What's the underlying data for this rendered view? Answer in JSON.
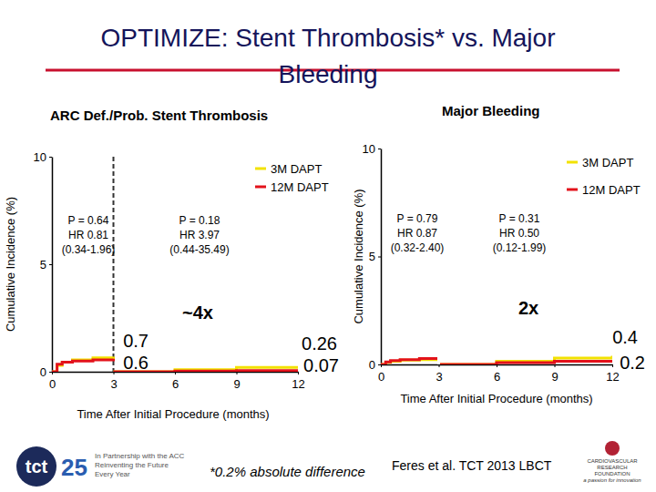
{
  "title": "OPTIMIZE: Stent Thrombosis* vs. Major Bleeding",
  "footnote": "*0.2% absolute difference",
  "citation": "Feres et al. TCT 2013 LBCT",
  "logo": {
    "tct": "tct",
    "anniversary": "25",
    "tagline": [
      "In Partnership with the ACC",
      "Reinventing the Future",
      "Every Year"
    ],
    "crf": [
      "CARDIOVASCULAR",
      "RESEARCH",
      "FOUNDATION",
      "a passion for innovation"
    ]
  },
  "chart_data": [
    {
      "type": "line",
      "title": "ARC Def./Prob. Stent Thrombosis",
      "x_label": "Time After Initial Procedure (months)",
      "y_label": "Cumulative Incidence (%)",
      "x": [
        0,
        0.25,
        0.5,
        1,
        2,
        3,
        3,
        3,
        6,
        9,
        12
      ],
      "series": [
        {
          "name": "3M DAPT",
          "color": "#f2e200",
          "line_style": "step",
          "values": [
            0,
            0.3,
            0.45,
            0.55,
            0.65,
            0.7,
            null,
            0,
            0.1,
            0.2,
            0.26
          ]
        },
        {
          "name": "12M DAPT",
          "color": "#e3121b",
          "line_style": "step",
          "values": [
            0,
            0.35,
            0.45,
            0.5,
            0.55,
            0.6,
            null,
            0,
            0.03,
            0.05,
            0.07
          ]
        }
      ],
      "xlim": [
        0,
        12
      ],
      "ylim": [
        0,
        10
      ],
      "xticks": [
        0,
        3,
        6,
        9,
        12
      ],
      "yticks": [
        0,
        5,
        10
      ],
      "grid": false,
      "legend": "upper right",
      "landmark": 3,
      "annotations": [
        [
          "P = 0.64",
          "HR 0.81",
          "(0.34-1.96)"
        ],
        [
          "P = 0.18",
          "HR 3.97",
          "(0.44-35.49)"
        ],
        [
          "~4x"
        ],
        [
          "0.7"
        ],
        [
          "0.6"
        ],
        [
          "0.26"
        ],
        [
          "0.07"
        ]
      ]
    },
    {
      "type": "line",
      "title": "Major Bleeding",
      "x_label": "Time After Initial Procedure (months)",
      "y_label": "Cumulative Incidence (%)",
      "x": [
        0,
        0.25,
        0.5,
        1,
        2,
        3,
        3,
        3,
        6,
        9,
        12
      ],
      "series": [
        {
          "name": "3M DAPT",
          "color": "#f2e200",
          "line_style": "step",
          "values": [
            0,
            0.1,
            0.15,
            0.2,
            0.22,
            0.25,
            null,
            0,
            0.15,
            0.3,
            0.4
          ]
        },
        {
          "name": "12M DAPT",
          "color": "#e3121b",
          "line_style": "step",
          "values": [
            0,
            0.12,
            0.18,
            0.22,
            0.27,
            0.3,
            null,
            0,
            0.08,
            0.15,
            0.2
          ]
        }
      ],
      "xlim": [
        0,
        12
      ],
      "ylim": [
        0,
        10
      ],
      "xticks": [
        0,
        3,
        6,
        9,
        12
      ],
      "yticks": [
        0,
        5,
        10
      ],
      "grid": false,
      "legend": "upper right",
      "landmark": 3,
      "annotations": [
        [
          "P = 0.79",
          "HR 0.87",
          "(0.32-2.40)"
        ],
        [
          "P = 0.31",
          "HR 0.50",
          "(0.12-1.99)"
        ],
        [
          "2x"
        ],
        [
          "0.4"
        ],
        [
          "0.2"
        ]
      ]
    }
  ]
}
